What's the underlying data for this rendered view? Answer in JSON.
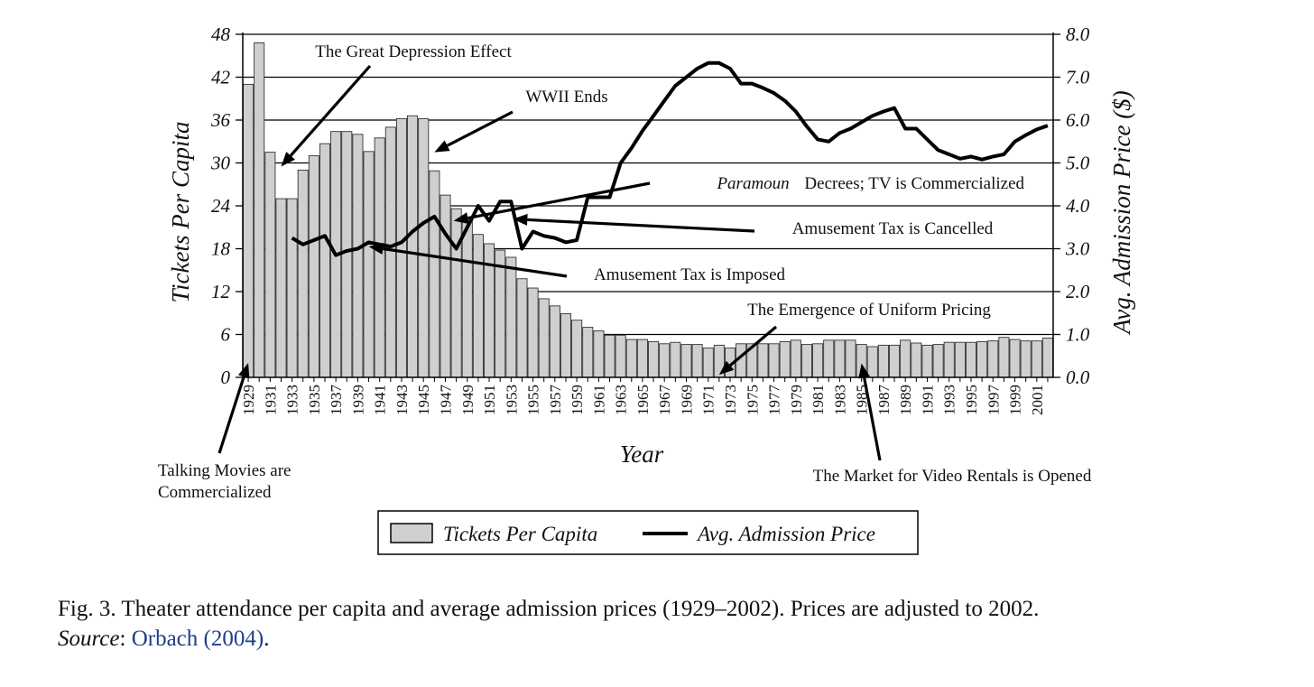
{
  "chart_data": {
    "type": "bar",
    "xlabel": "Year",
    "ylabel_left": "Tickets Per Capita",
    "ylabel_right": "Avg. Admission Price ($)",
    "ylim_left": [
      0,
      48
    ],
    "ylim_right": [
      0.0,
      8.0
    ],
    "yticks_left": [
      "0",
      "6",
      "12",
      "18",
      "24",
      "30",
      "36",
      "42",
      "48"
    ],
    "yticks_right": [
      "0.0",
      "1.0",
      "2.0",
      "3.0",
      "4.0",
      "5.0",
      "6.0",
      "7.0",
      "8.0"
    ],
    "grid": "horizontal",
    "legend_placement": "bottom-center",
    "x": [
      1929,
      1930,
      1931,
      1932,
      1933,
      1934,
      1935,
      1936,
      1937,
      1938,
      1939,
      1940,
      1941,
      1942,
      1943,
      1944,
      1945,
      1946,
      1947,
      1948,
      1949,
      1950,
      1951,
      1952,
      1953,
      1954,
      1955,
      1956,
      1957,
      1958,
      1959,
      1960,
      1961,
      1962,
      1963,
      1964,
      1965,
      1966,
      1967,
      1968,
      1969,
      1970,
      1971,
      1972,
      1973,
      1974,
      1975,
      1976,
      1977,
      1978,
      1979,
      1980,
      1981,
      1982,
      1983,
      1984,
      1985,
      1986,
      1987,
      1988,
      1989,
      1990,
      1991,
      1992,
      1993,
      1994,
      1995,
      1996,
      1997,
      1998,
      1999,
      2000,
      2001,
      2002
    ],
    "xtick_labels": [
      "1929",
      "1931",
      "1933",
      "1935",
      "1937",
      "1939",
      "1941",
      "1943",
      "1945",
      "1947",
      "1949",
      "1951",
      "1953",
      "1955",
      "1957",
      "1959",
      "1961",
      "1963",
      "1965",
      "1967",
      "1969",
      "1971",
      "1973",
      "1975",
      "1977",
      "1979",
      "1981",
      "1983",
      "1985",
      "1987",
      "1989",
      "1991",
      "1993",
      "1995",
      "1997",
      "1999",
      "2001"
    ],
    "series": [
      {
        "name": "Tickets Per Capita",
        "type": "bar",
        "axis": "left",
        "values": [
          41,
          46.8,
          31.5,
          25,
          25,
          29,
          31,
          32.7,
          34.4,
          34.4,
          34,
          31.6,
          33.5,
          35,
          36.2,
          36.6,
          36.2,
          28.9,
          25.5,
          23.6,
          22,
          20,
          18.7,
          17.8,
          16.8,
          13.8,
          12.5,
          11,
          10,
          8.9,
          8,
          7,
          6.5,
          5.9,
          5.9,
          5.3,
          5.3,
          5,
          4.7,
          4.9,
          4.6,
          4.6,
          4.1,
          4.5,
          4.1,
          4.7,
          4.7,
          4.7,
          4.7,
          5,
          5.2,
          4.6,
          4.7,
          5.2,
          5.2,
          5.2,
          4.6,
          4.3,
          4.5,
          4.5,
          5.2,
          4.8,
          4.5,
          4.6,
          4.9,
          4.9,
          4.9,
          5,
          5.1,
          5.6,
          5.3,
          5.1,
          5.1,
          5.5
        ]
      },
      {
        "name": "Avg. Admission Price",
        "type": "line",
        "axis": "right",
        "x": [
          1933,
          1934,
          1935,
          1936,
          1937,
          1938,
          1939,
          1940,
          1941,
          1942,
          1943,
          1944,
          1945,
          1946,
          1947,
          1948,
          1949,
          1950,
          1951,
          1952,
          1953,
          1954,
          1955,
          1956,
          1957,
          1958,
          1959,
          1960,
          1961,
          1962,
          1963,
          1964,
          1965,
          1966,
          1967,
          1968,
          1969,
          1970,
          1971,
          1972,
          1973,
          1974,
          1975,
          1976,
          1977,
          1978,
          1979,
          1980,
          1981,
          1982,
          1983,
          1984,
          1985,
          1986,
          1987,
          1988,
          1989,
          1990,
          1991,
          1992,
          1993,
          1994,
          1995,
          1996,
          1997,
          1998,
          1999,
          2000,
          2001,
          2002
        ],
        "values": [
          3.25,
          3.1,
          3.2,
          3.3,
          2.85,
          2.95,
          3.0,
          3.15,
          3.1,
          3.05,
          3.15,
          3.4,
          3.6,
          3.75,
          3.35,
          3.0,
          3.5,
          4.0,
          3.65,
          4.1,
          4.1,
          3.0,
          3.4,
          3.3,
          3.25,
          3.15,
          3.2,
          4.2,
          4.2,
          4.2,
          5.0,
          5.35,
          5.75,
          6.1,
          6.45,
          6.8,
          7.0,
          7.2,
          7.33,
          7.33,
          7.2,
          6.85,
          6.85,
          6.75,
          6.63,
          6.45,
          6.2,
          5.85,
          5.55,
          5.5,
          5.7,
          5.8,
          5.95,
          6.1,
          6.2,
          6.28,
          5.8,
          5.8,
          5.55,
          5.3,
          5.2,
          5.1,
          5.15,
          5.08,
          5.15,
          5.2,
          5.5,
          5.65,
          5.78,
          5.87
        ]
      }
    ],
    "annotations": [
      {
        "text": "The Great Depression Effect",
        "year": 1932,
        "value": 29.5,
        "axis": "left"
      },
      {
        "text": "WWII Ends",
        "year": 1946,
        "value": 31.5,
        "axis": "left"
      },
      {
        "text_italic": "Paramoun",
        "text": "Decrees; TV is Commercialized",
        "year": 1948,
        "value": 3.65,
        "axis": "right"
      },
      {
        "text": "Amusement Tax is Cancelled",
        "year": 1953,
        "value": 3.65,
        "axis": "right"
      },
      {
        "text": "Amusement Tax is Imposed",
        "year": 1940,
        "value": 3.05,
        "axis": "right"
      },
      {
        "text": "The Emergence of Uniform Pricing",
        "year": 1972,
        "value": 1.0,
        "axis": "left-bottom"
      },
      {
        "text": "Talking Movies are Commercialized",
        "lines": [
          "Talking Movies are",
          "Commercialized"
        ],
        "year": 1929,
        "value": 1.5,
        "axis": "left"
      },
      {
        "text": "The Market for Video Rentals is Opened",
        "year": 1985,
        "value": 0.7,
        "axis": "left"
      }
    ]
  },
  "caption": {
    "text": "Fig. 3. Theater attendance per capita and average admission prices (1929–2002). Prices are adjusted to 2002.",
    "source_label": "Source",
    "source_sep": ": ",
    "source_link": "Orbach (2004)",
    "source_end": "."
  }
}
